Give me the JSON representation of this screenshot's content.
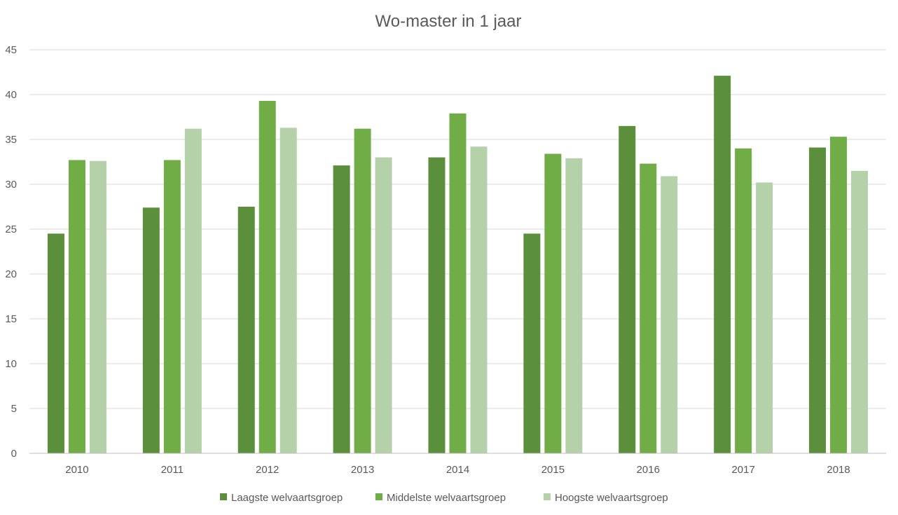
{
  "chart_data": {
    "type": "bar",
    "title": "Wo-master in 1 jaar",
    "xlabel": "",
    "ylabel": "",
    "ylim": [
      0,
      45
    ],
    "yticks": [
      0,
      5,
      10,
      15,
      20,
      25,
      30,
      35,
      40,
      45
    ],
    "grid": true,
    "legend_position": "bottom",
    "categories": [
      "2010",
      "2011",
      "2012",
      "2013",
      "2014",
      "2015",
      "2016",
      "2017",
      "2018"
    ],
    "series": [
      {
        "name": "Laagste welvaartsgroep",
        "color": "#5b8f3b",
        "values": [
          24.5,
          27.4,
          27.5,
          32.1,
          33.0,
          24.5,
          36.5,
          42.1,
          34.1
        ]
      },
      {
        "name": "Middelste welvaartsgroep",
        "color": "#70ad47",
        "values": [
          32.7,
          32.7,
          39.3,
          36.2,
          37.9,
          33.4,
          32.3,
          34.0,
          35.3
        ]
      },
      {
        "name": "Hoogste welvaartsgroep",
        "color": "#b5d1a9",
        "values": [
          32.6,
          36.2,
          36.3,
          33.0,
          34.2,
          32.9,
          30.9,
          30.2,
          31.5
        ]
      }
    ]
  }
}
